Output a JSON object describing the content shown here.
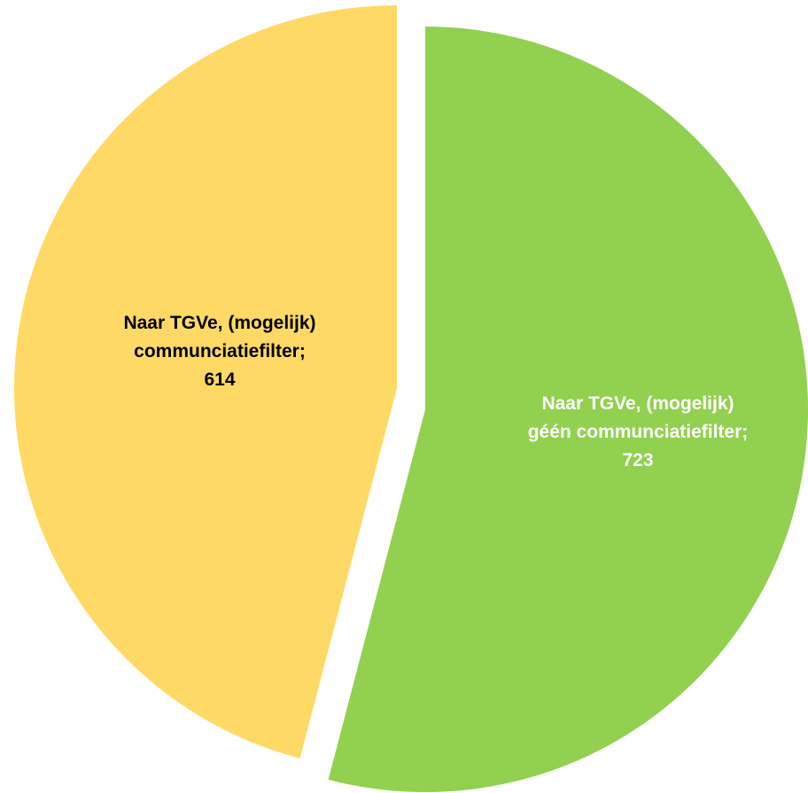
{
  "chart_data": {
    "type": "pie",
    "slices": [
      {
        "label_lines": [
          "Naar TGVe, (mogelijk)",
          "géén communciatiefilter;"
        ],
        "value": 723,
        "color": "#92d050",
        "label_color": "#ffffff"
      },
      {
        "label_lines": [
          "Naar TGVe, (mogelijk)",
          "communciatiefilter;"
        ],
        "value": 614,
        "color": "#ffd966",
        "label_color": "#000000"
      }
    ]
  }
}
